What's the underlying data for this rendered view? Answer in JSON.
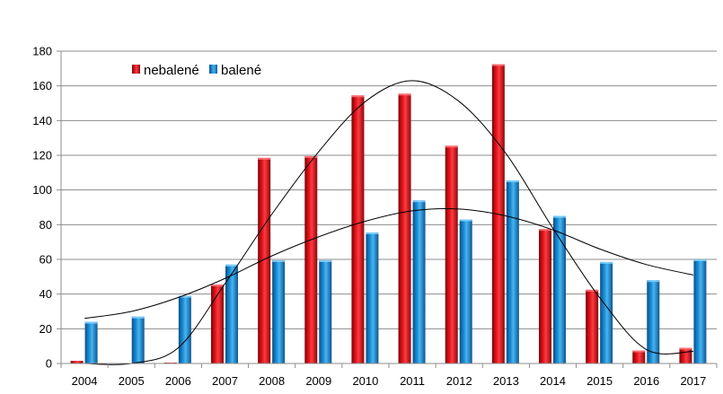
{
  "chart_data": {
    "type": "bar",
    "categories": [
      "2004",
      "2005",
      "2006",
      "2007",
      "2008",
      "2009",
      "2010",
      "2011",
      "2012",
      "2013",
      "2014",
      "2015",
      "2016",
      "2017"
    ],
    "series": [
      {
        "name": "nebalené",
        "values": [
          1.5,
          0,
          0.5,
          45.5,
          118.5,
          119.5,
          154.5,
          155.5,
          125.5,
          172.5,
          77.5,
          42.5,
          7.5,
          9
        ],
        "color": "#e0141c"
      },
      {
        "name": "balené",
        "values": [
          24,
          27,
          39,
          57,
          59.5,
          59.5,
          75.5,
          94,
          83,
          105.5,
          85,
          58.5,
          48,
          60
        ],
        "color": "#1a90d8"
      }
    ],
    "trendlines": [
      {
        "series": "nebalené",
        "kind": "polynomial-smooth",
        "points": [
          0,
          0,
          9,
          46,
          86,
          122,
          151,
          163,
          151,
          121,
          78,
          38,
          8,
          7
        ]
      },
      {
        "series": "balené",
        "kind": "polynomial-smooth",
        "points": [
          26,
          30,
          38,
          49,
          62,
          73,
          82,
          88,
          89,
          85,
          77,
          66,
          57,
          51
        ]
      }
    ],
    "ylim": [
      0,
      180
    ],
    "ytick_step": 20,
    "yticks": [
      "0",
      "20",
      "40",
      "60",
      "80",
      "100",
      "120",
      "140",
      "160",
      "180"
    ],
    "grid": true,
    "legend": "top-left",
    "xlabel": "",
    "ylabel": "",
    "title": ""
  }
}
